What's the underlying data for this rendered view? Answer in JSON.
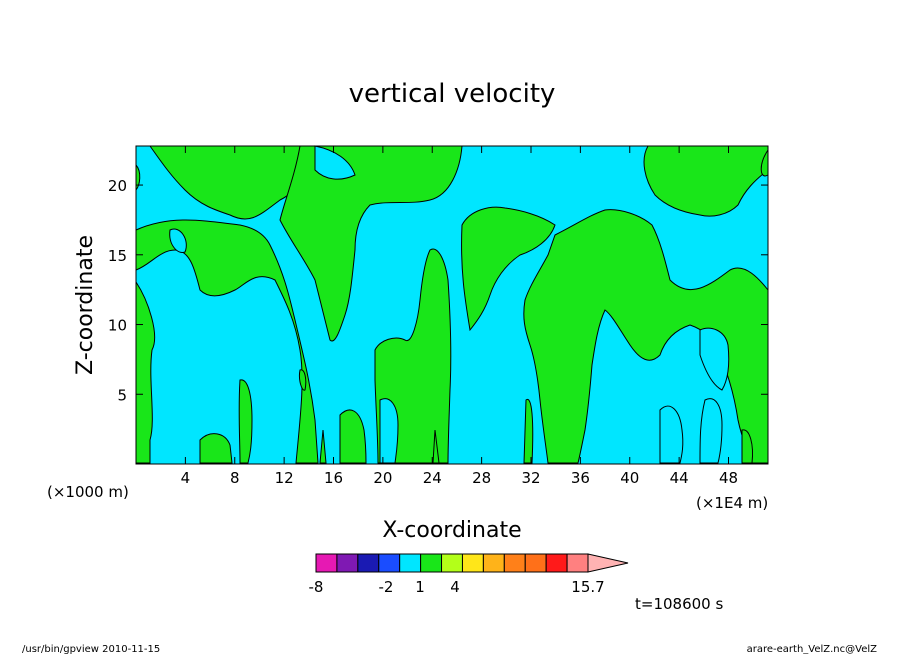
{
  "chart_data": {
    "type": "heatmap",
    "title": "vertical velocity",
    "xlabel": "X-coordinate",
    "ylabel": "Z-coordinate",
    "x_unit_left": "(×1000 m)",
    "x_unit_right": "(×1E4 m)",
    "x_ticks": [
      4,
      8,
      12,
      16,
      20,
      24,
      28,
      32,
      36,
      40,
      44,
      48
    ],
    "y_ticks": [
      5,
      10,
      15,
      20
    ],
    "xlim": [
      0,
      51.2
    ],
    "ylim": [
      0,
      22.8
    ],
    "colorbar": {
      "tick_labels": [
        "-8",
        "-2",
        "1",
        "4",
        "15.7"
      ],
      "colors": [
        "#e619b3",
        "#7f19b3",
        "#1a1ab3",
        "#1a4dff",
        "#00e6ff",
        "#19e619",
        "#b3ff19",
        "#ffe619",
        "#ffb319",
        "#ff8019",
        "#ff7019",
        "#ff1a1a",
        "#ff8080",
        "#ffb3b3"
      ]
    },
    "time_label": "t=108600 s",
    "colors": {
      "negative": "#00e6ff",
      "positive": "#19e619"
    }
  },
  "footer": {
    "left": "/usr/bin/gpview  2010-11-15",
    "right": "arare-earth_VelZ.nc@VelZ"
  }
}
